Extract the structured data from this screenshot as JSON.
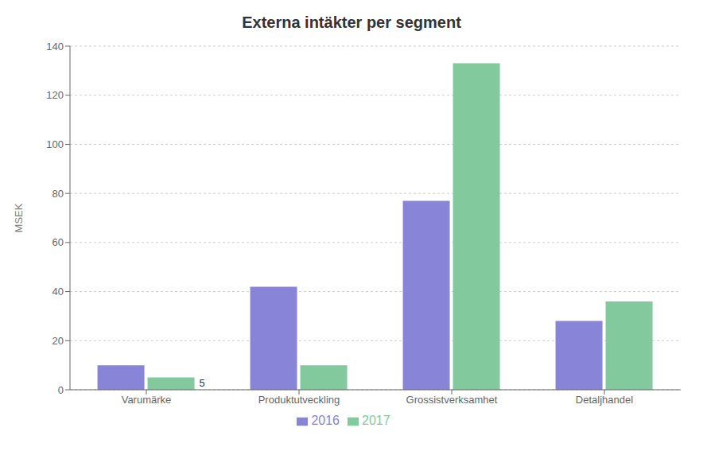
{
  "chart_data": {
    "type": "bar",
    "title": "Externa intäkter per segment",
    "ylabel": "MSEK",
    "categories": [
      "Varumärke",
      "Produktutveckling",
      "Grossistverksamhet",
      "Detaljhandel"
    ],
    "series": [
      {
        "name": "2016",
        "color": "#8884d8",
        "values": [
          10,
          42,
          77,
          28
        ]
      },
      {
        "name": "2017",
        "color": "#82ca9d",
        "values": [
          5,
          10,
          133,
          36
        ]
      }
    ],
    "ylim": [
      0,
      140
    ],
    "yticks": [
      0,
      20,
      40,
      60,
      80,
      100,
      120,
      140
    ],
    "grid": true,
    "legend": "bottom",
    "annotations": [
      {
        "text": "5",
        "category": "Varumärke",
        "series": "2017"
      }
    ]
  }
}
